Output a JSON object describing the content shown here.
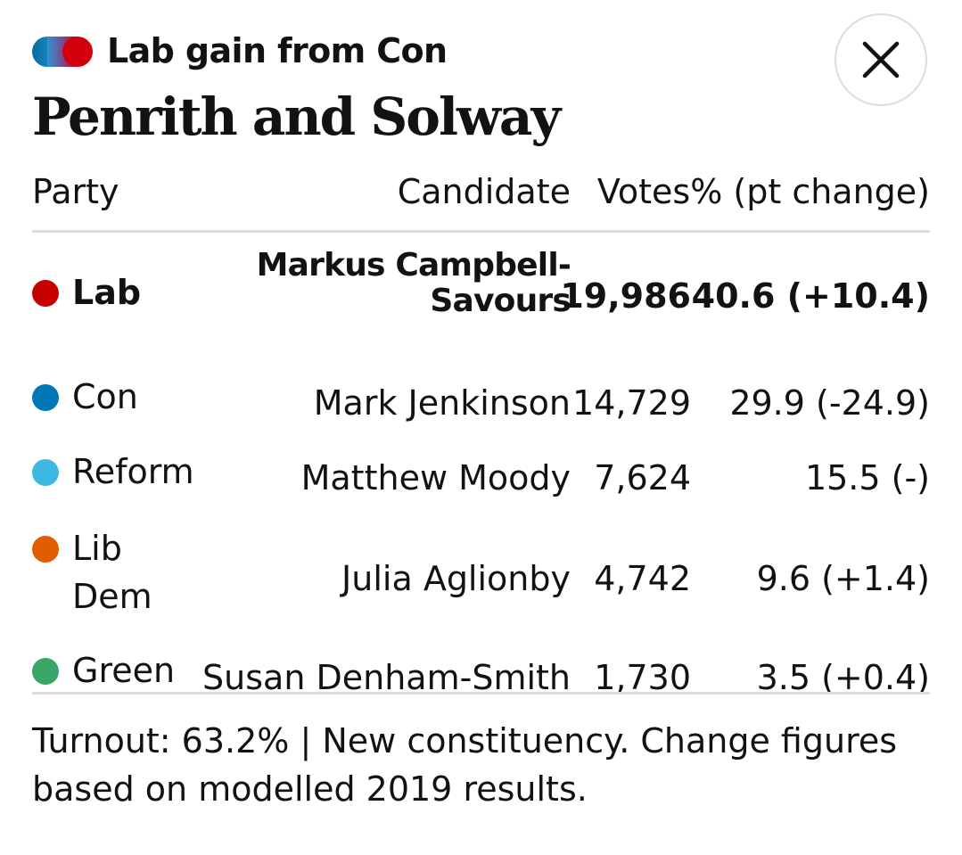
{
  "header": {
    "result_label": "Lab gain from Con",
    "constituency": "Penrith and Solway",
    "gain_colors": [
      "#056da1",
      "#d1000c"
    ]
  },
  "close": {
    "icon": "close-icon"
  },
  "table": {
    "columns": {
      "party": "Party",
      "candidate": "Candidate",
      "votes_pct": "Votes% (pt change)"
    },
    "rows": [
      {
        "party": "Lab",
        "color": "#c70000",
        "candidate_line1": "Markus Campbell-",
        "candidate_line2": "Savours",
        "votes": "19,986",
        "pct": "40.6 (+10.4)",
        "winner": true
      },
      {
        "party": "Con",
        "color": "#0077b6",
        "candidate": "Mark Jenkinson",
        "votes": "14,729",
        "pct": "29.9 (-24.9)"
      },
      {
        "party": "Reform",
        "color": "#3db8e3",
        "candidate": "Matthew Moody",
        "votes": "7,624",
        "pct": "15.5 (-)"
      },
      {
        "party_line1": "Lib",
        "party_line2": "Dem",
        "color": "#e05e00",
        "candidate": "Julia Aglionby",
        "votes": "4,742",
        "pct": "9.6 (+1.4)"
      },
      {
        "party": "Green",
        "color": "#39a566",
        "candidate": "Susan Denham-Smith",
        "votes": "1,730",
        "pct": "3.5 (+0.4)"
      }
    ]
  },
  "footnote": "Turnout: 63.2% | New constituency. Change figures based on modelled 2019 results."
}
